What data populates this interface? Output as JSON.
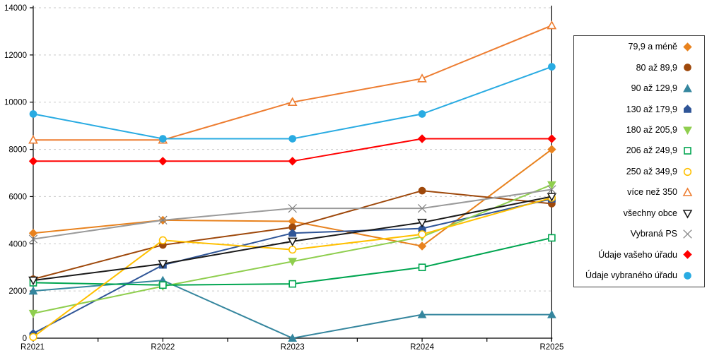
{
  "chart_data": {
    "type": "line",
    "title": "",
    "xlabel": "",
    "ylabel": "",
    "categories": [
      "R2021",
      "R2022",
      "R2023",
      "R2024",
      "R2025"
    ],
    "y_ticks": [
      0,
      2000,
      4000,
      6000,
      8000,
      10000,
      12000,
      14000
    ],
    "ylim": [
      0,
      14000
    ],
    "grid": "horizontal-dashed",
    "grid_color": "#c9c9c9",
    "axis_color": "#000000",
    "legend_position": "right",
    "series": [
      {
        "name": "79,9 a méně",
        "marker": "diamond",
        "open": false,
        "color": "#E8821E",
        "values": [
          4450,
          5000,
          4950,
          3900,
          8000
        ]
      },
      {
        "name": "80 až 89,9",
        "marker": "circle",
        "open": false,
        "color": "#9E480B",
        "values": [
          2500,
          3950,
          4700,
          6250,
          5700
        ]
      },
      {
        "name": "90 až 129,9",
        "marker": "triangle-up",
        "open": false,
        "color": "#35869E",
        "values": [
          2000,
          2450,
          0,
          1000,
          1000
        ]
      },
      {
        "name": "130 až 179,9",
        "marker": "pentagon",
        "open": false,
        "color": "#2F5597",
        "values": [
          200,
          3100,
          4450,
          4650,
          5900
        ]
      },
      {
        "name": "180 až 205,9",
        "marker": "triangle-down",
        "open": false,
        "color": "#8FCE4E",
        "values": [
          1050,
          2200,
          3250,
          4300,
          6500
        ]
      },
      {
        "name": "206 až 249,9",
        "marker": "square",
        "open": true,
        "color": "#00A550",
        "values": [
          2350,
          2250,
          2300,
          3000,
          4250
        ]
      },
      {
        "name": "250 až 349,9",
        "marker": "circle",
        "open": true,
        "color": "#FFC000",
        "values": [
          50,
          4150,
          3750,
          4400,
          5950
        ]
      },
      {
        "name": "více než 350",
        "marker": "triangle-up",
        "open": true,
        "color": "#ED7D31",
        "values": [
          8400,
          8400,
          10000,
          11000,
          13250
        ]
      },
      {
        "name": "všechny obce",
        "marker": "triangle-down",
        "open": true,
        "color": "#1A1A1A",
        "values": [
          2450,
          3150,
          4100,
          4900,
          6000
        ]
      },
      {
        "name": "Vybraná PS",
        "marker": "x",
        "open": true,
        "color": "#9A9A9A",
        "marker_color": "#808080",
        "values": [
          4200,
          5000,
          5500,
          5500,
          6300
        ]
      },
      {
        "name": "Údaje vašeho úřadu",
        "marker": "diamond",
        "open": false,
        "color": "#FF0000",
        "values": [
          7500,
          7500,
          7500,
          8450,
          8450
        ]
      },
      {
        "name": "Údaje vybraného úřadu",
        "marker": "circle",
        "open": false,
        "color": "#29ABE2",
        "values": [
          9500,
          8450,
          8450,
          9500,
          11500
        ]
      }
    ]
  }
}
